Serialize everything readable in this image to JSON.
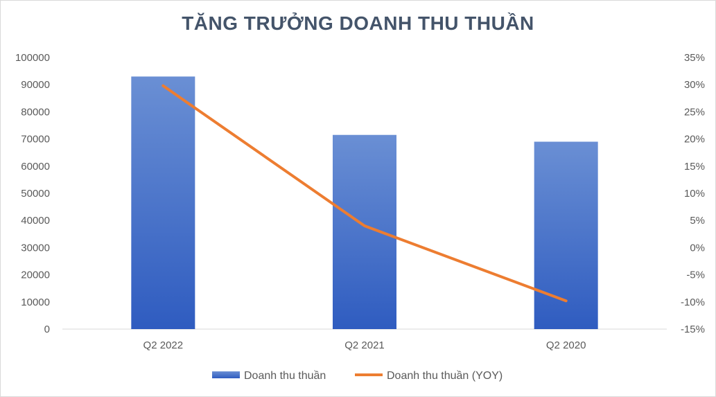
{
  "chart_data": {
    "type": "bar",
    "title": "TĂNG TRƯỞNG DOANH THU THUẦN",
    "categories": [
      "Q2 2022",
      "Q2 2021",
      "Q2 2020"
    ],
    "series": [
      {
        "name": "Doanh thu thuần",
        "kind": "bar",
        "axis": "left",
        "color": "#4472c4",
        "values": [
          93000,
          71500,
          69000
        ]
      },
      {
        "name": "Doanh thu thuần (YOY)",
        "kind": "line",
        "axis": "right",
        "color": "#ed7d31",
        "values": [
          29.8,
          4.0,
          -9.8
        ]
      }
    ],
    "y_left": {
      "ylim": [
        0,
        100000
      ],
      "ticks": [
        "0",
        "10000",
        "20000",
        "30000",
        "40000",
        "50000",
        "60000",
        "70000",
        "80000",
        "90000",
        "100000"
      ]
    },
    "y_right": {
      "ylim": [
        -15,
        35
      ],
      "ticks": [
        "-15%",
        "-10%",
        "-5%",
        "0%",
        "5%",
        "10%",
        "15%",
        "20%",
        "25%",
        "30%",
        "35%"
      ]
    },
    "grid": false,
    "legend": "bottom"
  }
}
